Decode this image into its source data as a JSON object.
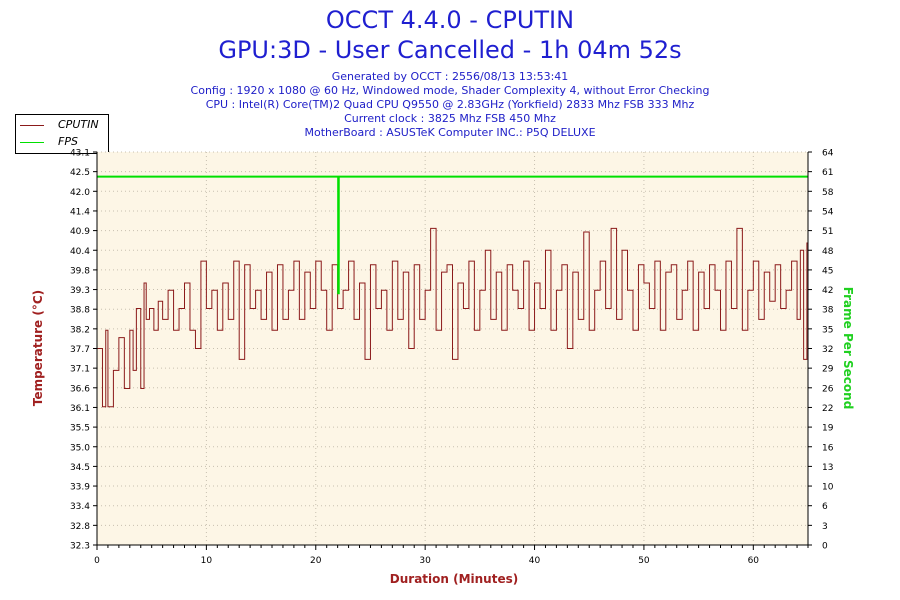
{
  "header": {
    "title": "OCCT 4.4.0 - CPUTIN",
    "subtitle": "GPU:3D - User Cancelled - 1h 04m 52s",
    "info_lines": [
      "Generated by OCCT : 2556/08/13 13:53:41",
      "Config : 1920 x 1080 @ 60 Hz, Windowed mode, Shader Complexity 4, without Error Checking",
      "CPU : Intel(R) Core(TM)2 Quad CPU Q9550 @ 2.83GHz (Yorkfield) 2833 Mhz FSB 333 Mhz",
      "Current clock : 3825 Mhz FSB 450 Mhz",
      "MotherBoard : ASUSTeK Computer INC.: P5Q DELUXE"
    ]
  },
  "colors": {
    "temperature": "#8b1a1a",
    "fps": "#00e000",
    "plot_bg": "#fdf6e6",
    "grid": "#c8c0b0"
  },
  "chart_data": {
    "type": "line",
    "xlabel": "Duration (Minutes)",
    "ylabel_left": "Temperature (°C)",
    "ylabel_right": "Frame Per Second",
    "xlim": [
      0,
      65
    ],
    "x_ticks": [
      0,
      10,
      20,
      30,
      40,
      50,
      60
    ],
    "ylim_left": [
      32.3,
      43.1
    ],
    "y_ticks_left": [
      "32.3",
      "32.8",
      "33.4",
      "33.9",
      "34.5",
      "35.0",
      "35.5",
      "36.1",
      "36.6",
      "37.1",
      "37.7",
      "38.2",
      "38.8",
      "39.3",
      "39.8",
      "40.4",
      "40.9",
      "41.4",
      "42.0",
      "42.5",
      "43.1"
    ],
    "ylim_right": [
      0,
      64
    ],
    "y_ticks_right": [
      0,
      3,
      6,
      10,
      13,
      16,
      19,
      22,
      26,
      29,
      32,
      35,
      38,
      42,
      45,
      48,
      51,
      54,
      58,
      61,
      64
    ],
    "grid": true,
    "legend_position": "top-left",
    "series": [
      {
        "name": "CPUTIN",
        "axis": "left",
        "x": [
          0,
          0.5,
          0.8,
          1.0,
          1.5,
          2.0,
          2.5,
          3.0,
          3.3,
          3.6,
          4.0,
          4.3,
          4.5,
          4.8,
          5.2,
          5.6,
          6.0,
          6.5,
          7.0,
          7.5,
          8.0,
          8.5,
          9.0,
          9.5,
          10.0,
          10.5,
          11.0,
          11.5,
          12.0,
          12.5,
          13.0,
          13.5,
          14.0,
          14.5,
          15.0,
          15.5,
          16.0,
          16.5,
          17.0,
          17.5,
          18.0,
          18.5,
          19.0,
          19.5,
          20.0,
          20.5,
          21.0,
          21.5,
          22.0,
          22.5,
          23.0,
          23.5,
          24.0,
          24.5,
          25.0,
          25.5,
          26.0,
          26.5,
          27.0,
          27.5,
          28.0,
          28.5,
          29.0,
          29.5,
          30.0,
          30.5,
          31.0,
          31.5,
          32.0,
          32.5,
          33.0,
          33.5,
          34.0,
          34.5,
          35.0,
          35.5,
          36.0,
          36.5,
          37.0,
          37.5,
          38.0,
          38.5,
          39.0,
          39.5,
          40.0,
          40.5,
          41.0,
          41.5,
          42.0,
          42.5,
          43.0,
          43.5,
          44.0,
          44.5,
          45.0,
          45.5,
          46.0,
          46.5,
          47.0,
          47.5,
          48.0,
          48.5,
          49.0,
          49.5,
          50.0,
          50.5,
          51.0,
          51.5,
          52.0,
          52.5,
          53.0,
          53.5,
          54.0,
          54.5,
          55.0,
          55.5,
          56.0,
          56.5,
          57.0,
          57.5,
          58.0,
          58.5,
          59.0,
          59.5,
          60.0,
          60.5,
          61.0,
          61.5,
          62.0,
          62.5,
          63.0,
          63.5,
          64.0,
          64.3,
          64.6,
          64.9
        ],
        "values": [
          37.7,
          36.1,
          38.2,
          36.1,
          37.1,
          38.0,
          36.6,
          38.2,
          37.1,
          38.8,
          36.6,
          39.5,
          38.5,
          38.8,
          38.2,
          39.0,
          38.5,
          39.3,
          38.2,
          38.8,
          39.5,
          38.2,
          37.7,
          40.1,
          38.8,
          39.3,
          38.2,
          39.5,
          38.5,
          40.1,
          37.4,
          40.0,
          38.8,
          39.3,
          38.5,
          39.8,
          38.2,
          40.0,
          38.5,
          39.3,
          40.1,
          38.5,
          39.8,
          38.8,
          40.1,
          39.3,
          38.2,
          40.0,
          38.8,
          39.3,
          40.1,
          38.5,
          39.5,
          37.4,
          40.0,
          38.8,
          39.3,
          38.2,
          40.1,
          38.5,
          39.8,
          37.7,
          40.0,
          38.5,
          39.3,
          41.0,
          38.2,
          39.8,
          40.0,
          37.4,
          39.5,
          38.8,
          40.1,
          38.2,
          39.3,
          40.4,
          38.5,
          39.8,
          38.2,
          40.0,
          39.3,
          38.8,
          40.1,
          38.2,
          39.5,
          38.8,
          40.4,
          38.2,
          39.3,
          40.0,
          37.7,
          39.8,
          38.5,
          40.9,
          38.2,
          39.3,
          40.1,
          38.8,
          41.0,
          38.5,
          40.4,
          39.3,
          38.2,
          40.0,
          39.5,
          38.8,
          40.1,
          38.2,
          39.8,
          40.0,
          38.5,
          39.3,
          40.1,
          38.2,
          39.8,
          38.8,
          40.0,
          39.3,
          38.2,
          40.1,
          38.8,
          41.0,
          38.2,
          39.3,
          40.1,
          38.5,
          39.8,
          39.0,
          40.0,
          38.8,
          39.3,
          40.1,
          38.5,
          40.4,
          37.4,
          40.6
        ]
      },
      {
        "name": "FPS",
        "axis": "right",
        "x": [
          0,
          22.0,
          22.05,
          22.1,
          22.15,
          65.0
        ],
        "values": [
          60,
          60,
          41,
          60,
          60,
          60
        ]
      }
    ]
  },
  "legend": [
    {
      "name": "CPUTIN"
    },
    {
      "name": "FPS"
    }
  ]
}
